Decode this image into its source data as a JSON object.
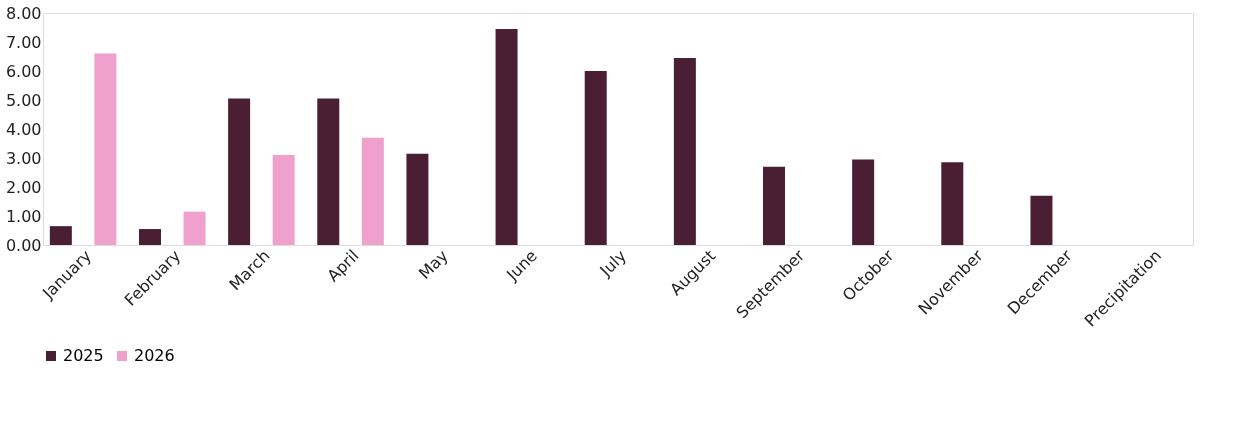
{
  "chart_data": {
    "type": "bar",
    "categories": [
      "January",
      "February",
      "March",
      "April",
      "May",
      "June",
      "July",
      "August",
      "September",
      "October",
      "November",
      "December",
      "Precipitation"
    ],
    "series": [
      {
        "name": "2025",
        "color": "#4a1e33",
        "values": [
          0.65,
          0.55,
          5.05,
          5.05,
          3.15,
          7.45,
          6.0,
          6.45,
          2.7,
          2.95,
          2.85,
          1.7,
          null
        ]
      },
      {
        "name": "2026",
        "color": "#f0a0cc",
        "values": [
          6.6,
          1.15,
          3.1,
          3.7,
          null,
          null,
          null,
          null,
          null,
          null,
          null,
          null,
          null
        ]
      }
    ],
    "ylim": [
      0,
      8
    ],
    "yticks": [
      {
        "value": 0,
        "label": "0.00"
      },
      {
        "value": 1,
        "label": "1.00"
      },
      {
        "value": 2,
        "label": "2.00"
      },
      {
        "value": 3,
        "label": "3.00"
      },
      {
        "value": 4,
        "label": "4.00"
      },
      {
        "value": 5,
        "label": "5.00"
      },
      {
        "value": 6,
        "label": "6.00"
      },
      {
        "value": 7,
        "label": "7.00"
      },
      {
        "value": 8,
        "label": "8.00"
      }
    ],
    "grid": false,
    "legend": "bottom"
  }
}
